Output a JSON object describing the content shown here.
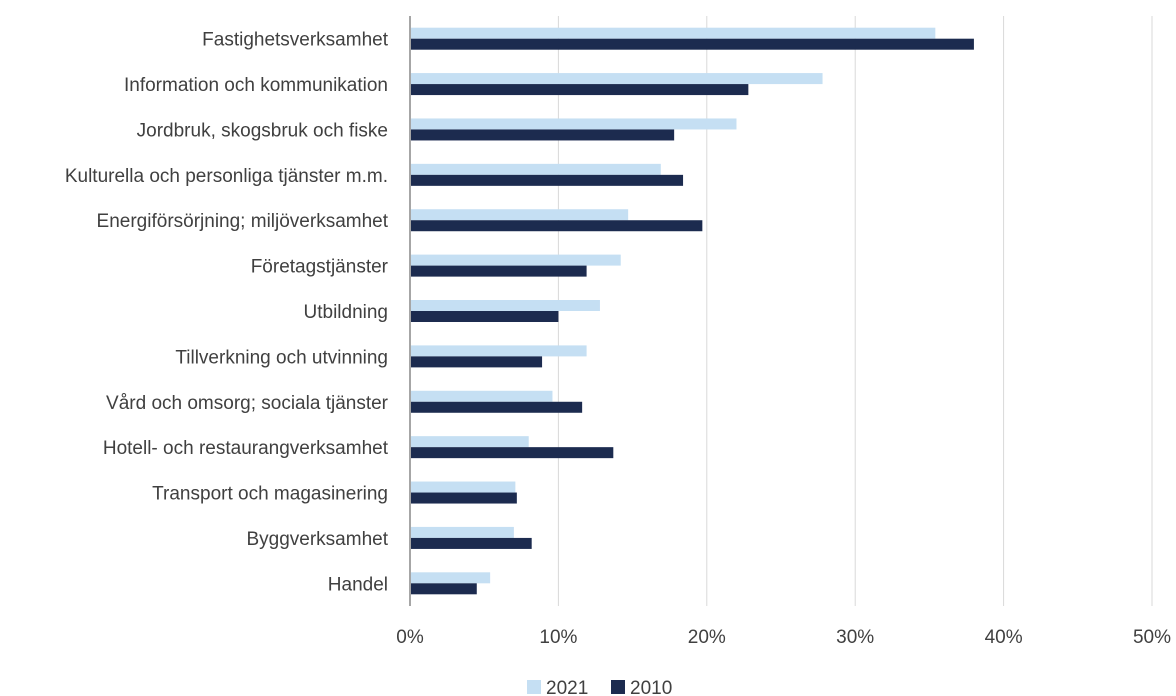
{
  "chart_data": {
    "type": "bar",
    "orientation": "horizontal",
    "categories": [
      "Fastighetsverksamhet",
      "Information och kommunikation",
      "Jordbruk, skogsbruk och fiske",
      "Kulturella och personliga tjänster m.m.",
      "Energiförsörjning; miljöverksamhet",
      "Företagstjänster",
      "Utbildning",
      "Tillverkning och utvinning",
      "Vård och omsorg; sociala tjänster",
      "Hotell- och restaurangverksamhet",
      "Transport och magasinering",
      "Byggverksamhet",
      "Handel"
    ],
    "series": [
      {
        "name": "2021",
        "color": "#c5dff3",
        "values": [
          35.4,
          27.8,
          22.0,
          16.9,
          14.7,
          14.2,
          12.8,
          11.9,
          9.6,
          8.0,
          7.1,
          7.0,
          5.4
        ]
      },
      {
        "name": "2010",
        "color": "#1c2b4f",
        "values": [
          38.0,
          22.8,
          17.8,
          18.4,
          19.7,
          11.9,
          10.0,
          8.9,
          11.6,
          13.7,
          7.2,
          8.2,
          4.5
        ]
      }
    ],
    "xlim": [
      0,
      50
    ],
    "xticks": [
      0,
      10,
      20,
      30,
      40,
      50
    ],
    "tick_labels": [
      "0%",
      "10%",
      "20%",
      "30%",
      "40%",
      "50%"
    ],
    "grid": true,
    "legend": "bottom-center"
  }
}
